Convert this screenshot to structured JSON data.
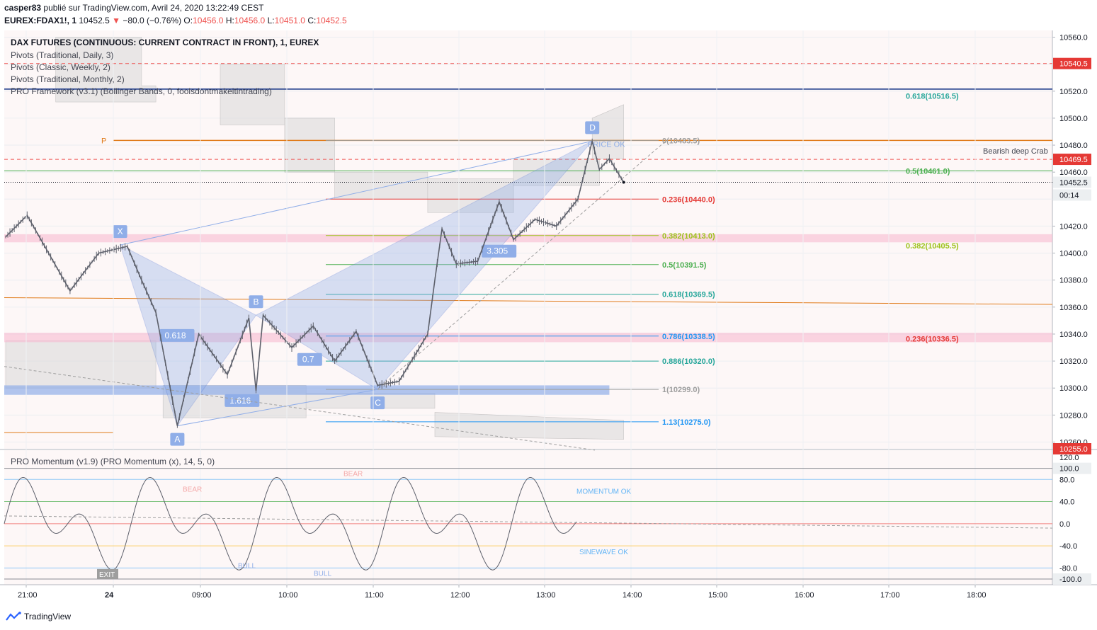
{
  "header": {
    "author": "casper83",
    "published": "publié sur TradingView.com, Avril 24, 2020 13:22:49 CEST",
    "symbol": "EUREX:FDAX1!, 1",
    "last": "10452.5",
    "change_arrow": "▼",
    "change": "−80.0 (−0.76%)",
    "o_label": "O:",
    "o": "10456.0",
    "h_label": "H:",
    "h": "10456.0",
    "l_label": "L:",
    "l": "10451.0",
    "c_label": "C:",
    "c": "10452.5"
  },
  "indicators": [
    "DAX FUTURES (CONTINUOUS: CURRENT CONTRACT IN FRONT), 1, EUREX",
    "Pivots (Traditional, Daily, 3)",
    "Pivots (Classic, Weekly, 2)",
    "Pivots (Traditional, Monthly, 2)",
    "PRO Framework (v3.1) (Bollinger Bands, 0, foolsdontmakeitintrading)"
  ],
  "momentum_title": "PRO Momentum (v1.9) (PRO Momentum (x), 14, 5, 0)",
  "footer": {
    "brand": "TradingView"
  },
  "colors": {
    "up": "#26a69a",
    "down": "#ef5350",
    "orange": "#e07b1a",
    "navy": "#0d2c82",
    "green": "#4caf50",
    "teal": "#26a69a",
    "fib_red": "#e53935",
    "fib_lime": "#9cc21a",
    "fib_blue": "#2196f3",
    "harmonic": "#90aee8",
    "price_tag": "#eceff1"
  },
  "chart_data": [
    {
      "type": "candlestick",
      "title": "DAX FUTURES (CONTINUOUS: CURRENT CONTRACT IN FRONT), 1, EUREX",
      "ylim": [
        10255,
        10565
      ],
      "y_ticks": [
        10260.0,
        10280.0,
        10300.0,
        10320.0,
        10340.0,
        10360.0,
        10380.0,
        10400.0,
        10420.0,
        10440.0,
        10460.0,
        10480.0,
        10500.0,
        10520.0,
        10540.0,
        10560.0
      ],
      "x_tick_labels": [
        "21:00",
        "24",
        "09:00",
        "10:00",
        "11:00",
        "12:00",
        "13:00",
        "14:00",
        "15:00",
        "16:00",
        "17:00",
        "18:00"
      ],
      "price_path": [
        {
          "t": "20:45",
          "p": 10412
        },
        {
          "t": "21:00",
          "p": 10428
        },
        {
          "t": "21:30",
          "p": 10372
        },
        {
          "t": "21:50",
          "p": 10400
        },
        {
          "t": "22:10",
          "p": 10405
        },
        {
          "t": "22:20",
          "p": 10380
        },
        {
          "t": "22:30",
          "p": 10356
        },
        {
          "t": "24 08:05",
          "p": 10300
        },
        {
          "t": "24 08:10",
          "p": 10272
        },
        {
          "t": "24 08:25",
          "p": 10340
        },
        {
          "t": "24 08:45",
          "p": 10310
        },
        {
          "t": "24 09:00",
          "p": 10352
        },
        {
          "t": "24 09:05",
          "p": 10298
        },
        {
          "t": "24 09:10",
          "p": 10354
        },
        {
          "t": "24 09:30",
          "p": 10330
        },
        {
          "t": "24 09:45",
          "p": 10346
        },
        {
          "t": "24 10:00",
          "p": 10320
        },
        {
          "t": "24 10:15",
          "p": 10342
        },
        {
          "t": "24 10:30",
          "p": 10302
        },
        {
          "t": "24 10:45",
          "p": 10305
        },
        {
          "t": "24 11:05",
          "p": 10340
        },
        {
          "t": "24 11:10",
          "p": 10380
        },
        {
          "t": "24 11:15",
          "p": 10418
        },
        {
          "t": "24 11:25",
          "p": 10392
        },
        {
          "t": "24 11:40",
          "p": 10394
        },
        {
          "t": "24 11:55",
          "p": 10438
        },
        {
          "t": "24 12:05",
          "p": 10410
        },
        {
          "t": "24 12:20",
          "p": 10425
        },
        {
          "t": "24 12:35",
          "p": 10420
        },
        {
          "t": "24 12:50",
          "p": 10440
        },
        {
          "t": "24 13:00",
          "p": 10483
        },
        {
          "t": "24 13:05",
          "p": 10462
        },
        {
          "t": "24 13:12",
          "p": 10470
        },
        {
          "t": "24 13:22",
          "p": 10452.5
        }
      ],
      "price_tags": [
        {
          "value": "10560.0"
        },
        {
          "value": "10540.5",
          "color": "red"
        },
        {
          "value": "10520.0"
        },
        {
          "value": "10500.0"
        },
        {
          "value": "10480.0"
        },
        {
          "value": "10469.5",
          "color": "red"
        },
        {
          "value": "10460.0"
        },
        {
          "value": "10452.5",
          "color": "grey"
        },
        {
          "value": "00:14",
          "color": "grey"
        },
        {
          "value": "10420.0"
        },
        {
          "value": "10400.0"
        },
        {
          "value": "10380.0"
        },
        {
          "value": "10360.0"
        },
        {
          "value": "10340.0"
        },
        {
          "value": "10320.0"
        },
        {
          "value": "10300.0"
        },
        {
          "value": "10280.0"
        },
        {
          "value": "10260.0"
        },
        {
          "value": "10255.0",
          "color": "red"
        }
      ],
      "pattern": {
        "name": "Bearish deep Crab",
        "points": [
          {
            "label": "X",
            "t": "22:05",
            "p": 10406
          },
          {
            "label": "A",
            "t": "24 08:10",
            "p": 10272
          },
          {
            "label": "B",
            "t": "24 09:05",
            "p": 10354
          },
          {
            "label": "C",
            "t": "24 10:30",
            "p": 10299
          },
          {
            "label": "D",
            "t": "24 13:00",
            "p": 10483
          }
        ],
        "ratios": [
          "0.618",
          "0.7",
          "1.616",
          "3.305"
        ],
        "price_ok": "PRICE OK"
      },
      "fib_levels": [
        {
          "label": "0(10483.5)",
          "price": 10483.5
        },
        {
          "label": "0.236(10440.0)",
          "price": 10440.0
        },
        {
          "label": "0.382(10413.0)",
          "price": 10413.0
        },
        {
          "label": "0.5(10391.5)",
          "price": 10391.5
        },
        {
          "label": "0.618(10369.5)",
          "price": 10369.5
        },
        {
          "label": "0.786(10338.5)",
          "price": 10338.5
        },
        {
          "label": "0.886(10320.0)",
          "price": 10320.0
        },
        {
          "label": "1(10299.0)",
          "price": 10299.0
        },
        {
          "label": "1.13(10275.0)",
          "price": 10275.0
        }
      ],
      "right_fib_levels": [
        {
          "label": "0.618(10516.5)",
          "price": 10516.5
        },
        {
          "label": "0.5(10461.0)",
          "price": 10461.0
        },
        {
          "label": "0.382(10405.5)",
          "price": 10405.5
        },
        {
          "label": "0.236(10336.5)",
          "price": 10336.5
        }
      ],
      "pivot_label": "P",
      "pivot_level": 10483.5
    },
    {
      "type": "line",
      "title": "PRO Momentum (v1.9) (PRO Momentum (x), 14, 5, 0)",
      "ylim": [
        -100,
        120
      ],
      "y_ticks": [
        "120.0",
        "100.0",
        "80.0",
        "40.0",
        "0.0",
        "-40.0",
        "-80.0",
        "-100.0"
      ],
      "annotations": [
        "BEAR",
        "BEAR",
        "EXIT",
        "BULL",
        "BULL",
        "MOMENTUM OK",
        "SINEWAVE OK"
      ]
    }
  ]
}
